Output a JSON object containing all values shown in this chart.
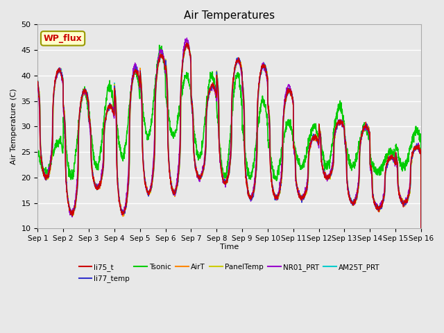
{
  "title": "Air Temperatures",
  "xlabel": "Time",
  "ylabel": "Air Temperature (C)",
  "ylim": [
    10,
    50
  ],
  "n_days": 15,
  "background_color": "#e8e8e8",
  "plot_bg_color": "#e8e8e8",
  "grid_color": "white",
  "series_colors": {
    "li75_t": "#cc0000",
    "li77_temp": "#3333cc",
    "Tsonic": "#00cc00",
    "AirT": "#ff8800",
    "PanelTemp": "#cccc00",
    "NR01_PRT": "#9900cc",
    "AM25T_PRT": "#00cccc"
  },
  "wp_flux_label": "WP_flux",
  "wp_flux_bg": "#ffffcc",
  "wp_flux_border": "#999900",
  "wp_flux_text_color": "#cc0000",
  "xtick_labels": [
    "Sep 1",
    "Sep 2",
    "Sep 3",
    "Sep 4",
    "Sep 5",
    "Sep 6",
    "Sep 7",
    "Sep 8",
    "Sep 9",
    "Sep 10",
    "Sep 11",
    "Sep 12",
    "Sep 13",
    "Sep 14",
    "Sep 15",
    "Sep 16"
  ],
  "ytick_values": [
    10,
    15,
    20,
    25,
    30,
    35,
    40,
    45,
    50
  ],
  "cluster_peaks": [
    41,
    37,
    34,
    41,
    44,
    46,
    38,
    43,
    42,
    37,
    28,
    31,
    30,
    24,
    26
  ],
  "cluster_mins": [
    20,
    13,
    18,
    13,
    17,
    17,
    20,
    19,
    16,
    16,
    16,
    20,
    15,
    14,
    15
  ],
  "tsonic_peaks": [
    27,
    37,
    38,
    41,
    45,
    40,
    40,
    40,
    35,
    31,
    30,
    34,
    30,
    25,
    29
  ],
  "tsonic_mins": [
    21,
    20,
    22,
    24,
    28,
    28,
    24,
    20,
    20,
    20,
    22,
    22,
    22,
    21,
    22
  ],
  "nr01_extra_peaks": [
    41,
    37,
    34,
    42,
    45,
    47,
    38,
    43,
    42,
    38,
    28,
    31,
    30,
    24,
    26
  ]
}
